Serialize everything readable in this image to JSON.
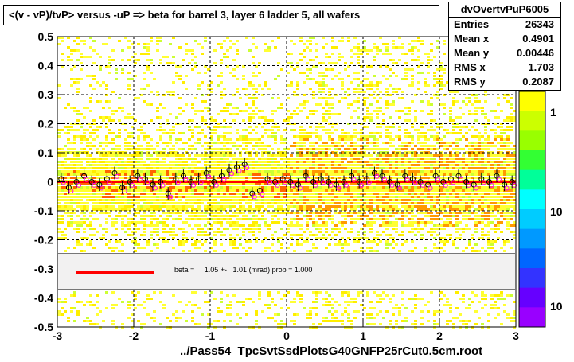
{
  "title": "<(v - vP)/tvP> versus  -uP => beta for barrel 3, layer 6 ladder 5, all wafers",
  "stats": {
    "name": "dvOvertvPuP6005",
    "entries_label": "Entries",
    "entries": "26343",
    "meanx_label": "Mean x",
    "meanx": "0.4901",
    "meany_label": "Mean y",
    "meany": "0.00446",
    "rmsx_label": "RMS x",
    "rmsx": "1.703",
    "rmsy_label": "RMS y",
    "rmsy": "0.2087"
  },
  "legend": {
    "text": "beta =     1.05 +-   1.01 (mrad) prob = 1.000"
  },
  "xtitle": "../Pass54_TpcSvtSsdPlotsG40GNFP25rCut0.5cm.root",
  "colors": {
    "fit": "#ff0000",
    "points": "#000000",
    "points2": "#ff00ff"
  },
  "palette_labels": [
    "1",
    "10",
    "10"
  ],
  "chart_data": {
    "type": "heatmap",
    "xlim": [
      -3,
      3
    ],
    "ylim": [
      -0.5,
      0.5
    ],
    "xticks": [
      "-3",
      "-2",
      "-1",
      "0",
      "1",
      "2",
      "3"
    ],
    "yticks": [
      "-0.5",
      "-0.4",
      "-0.3",
      "-0.2",
      "-0.1",
      "0",
      "0.1",
      "0.2",
      "0.3",
      "0.4",
      "0.5"
    ],
    "grid": true,
    "fit_line": {
      "y": 0.0
    },
    "profile": {
      "x": [
        -2.95,
        -2.85,
        -2.75,
        -2.65,
        -2.55,
        -2.45,
        -2.35,
        -2.25,
        -2.15,
        -2.05,
        -1.95,
        -1.85,
        -1.75,
        -1.65,
        -1.55,
        -1.45,
        -1.35,
        -1.25,
        -1.15,
        -1.05,
        -0.95,
        -0.85,
        -0.75,
        -0.65,
        -0.55,
        -0.45,
        -0.35,
        -0.25,
        -0.15,
        -0.05,
        0.05,
        0.15,
        0.25,
        0.35,
        0.45,
        0.55,
        0.65,
        0.75,
        0.85,
        0.95,
        1.05,
        1.15,
        1.25,
        1.35,
        1.45,
        1.55,
        1.65,
        1.75,
        1.85,
        1.95,
        2.05,
        2.15,
        2.25,
        2.35,
        2.45,
        2.55,
        2.65,
        2.75,
        2.85,
        2.95
      ],
      "y": [
        0.01,
        -0.02,
        0.0,
        0.02,
        0.0,
        -0.01,
        0.01,
        0.03,
        -0.02,
        0.0,
        0.02,
        0.01,
        -0.01,
        0.0,
        -0.04,
        0.01,
        0.02,
        0.0,
        0.01,
        0.03,
        0.0,
        0.02,
        0.04,
        0.05,
        0.06,
        -0.04,
        -0.03,
        0.01,
        0.0,
        0.01,
        0.0,
        -0.01,
        0.02,
        0.0,
        0.01,
        0.0,
        -0.01,
        0.0,
        0.02,
        0.0,
        0.01,
        0.03,
        0.02,
        0.0,
        -0.01,
        0.02,
        0.01,
        0.0,
        -0.01,
        0.02,
        0.0,
        0.01,
        0.02,
        0.0,
        -0.01,
        0.01,
        0.0,
        0.02,
        -0.01,
        0.0
      ]
    }
  }
}
